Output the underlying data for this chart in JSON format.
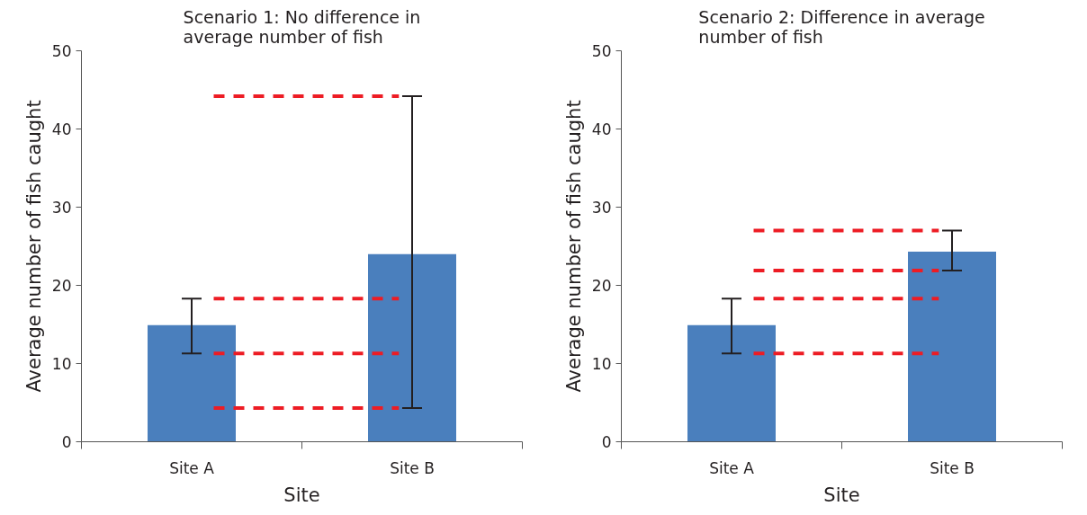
{
  "chart_data": [
    {
      "type": "bar",
      "title": "Scenario 1: No difference in average number of fish",
      "xlabel": "Site",
      "ylabel": "Average number of fish caught",
      "categories": [
        "Site A",
        "Site B"
      ],
      "values": [
        14.9,
        24.0
      ],
      "errors": [
        [
          11.3,
          18.3
        ],
        [
          4.3,
          44.2
        ]
      ],
      "color": "#4a7fbd",
      "ylim": [
        0,
        50
      ],
      "yticks": [
        0,
        10,
        20,
        30,
        40,
        50
      ],
      "ref_lines": [
        {
          "axis": "y",
          "value": 44.2,
          "color": "#ed1c24",
          "line_style": "dashed"
        },
        {
          "axis": "y",
          "value": 18.3,
          "color": "#ed1c24",
          "line_style": "dashed"
        },
        {
          "axis": "y",
          "value": 11.3,
          "color": "#ed1c24",
          "line_style": "dashed"
        },
        {
          "axis": "y",
          "value": 4.3,
          "color": "#ed1c24",
          "line_style": "dashed"
        }
      ]
    },
    {
      "type": "bar",
      "title": "Scenario 2: Difference in average number of fish",
      "xlabel": "Site",
      "ylabel": "Average number of fish caught",
      "categories": [
        "Site A",
        "Site B"
      ],
      "values": [
        14.9,
        24.3
      ],
      "errors": [
        [
          11.3,
          18.3
        ],
        [
          21.9,
          27.0
        ]
      ],
      "color": "#4a7fbd",
      "ylim": [
        0,
        50
      ],
      "yticks": [
        0,
        10,
        20,
        30,
        40,
        50
      ],
      "ref_lines": [
        {
          "axis": "y",
          "value": 27.0,
          "color": "#ed1c24",
          "line_style": "dashed"
        },
        {
          "axis": "y",
          "value": 21.9,
          "color": "#ed1c24",
          "line_style": "dashed"
        },
        {
          "axis": "y",
          "value": 18.3,
          "color": "#ed1c24",
          "line_style": "dashed"
        },
        {
          "axis": "y",
          "value": 11.3,
          "color": "#ed1c24",
          "line_style": "dashed"
        }
      ]
    }
  ]
}
